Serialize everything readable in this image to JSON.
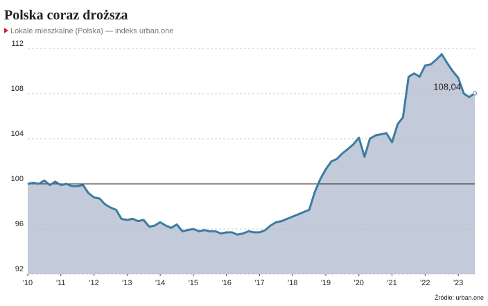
{
  "chart_data": {
    "type": "area",
    "title": "Polska coraz droższa",
    "subtitle": "Lokale mieszkalne (Polska) — indeks urban.one",
    "source": "Źródło: urban.one",
    "x": [
      2010,
      2010.17,
      2010.33,
      2010.5,
      2010.67,
      2010.83,
      2011,
      2011.17,
      2011.33,
      2011.5,
      2011.67,
      2011.83,
      2012,
      2012.17,
      2012.33,
      2012.5,
      2012.67,
      2012.83,
      2013,
      2013.17,
      2013.33,
      2013.5,
      2013.67,
      2013.83,
      2014,
      2014.17,
      2014.33,
      2014.5,
      2014.67,
      2014.83,
      2015,
      2015.17,
      2015.33,
      2015.5,
      2015.67,
      2015.83,
      2016,
      2016.17,
      2016.33,
      2016.5,
      2016.67,
      2016.83,
      2017,
      2017.17,
      2017.33,
      2017.5,
      2017.67,
      2017.83,
      2018,
      2018.17,
      2018.33,
      2018.5,
      2018.67,
      2018.83,
      2019,
      2019.17,
      2019.33,
      2019.5,
      2019.67,
      2019.83,
      2020,
      2020.17,
      2020.33,
      2020.5,
      2020.67,
      2020.83,
      2021,
      2021.17,
      2021.33,
      2021.5,
      2021.67,
      2021.83,
      2022,
      2022.17,
      2022.33,
      2022.5,
      2022.67,
      2022.83,
      2023,
      2023.17,
      2023.33,
      2023.5
    ],
    "series": [
      {
        "name": "Lokale mieszkalne (Polska)",
        "color": "#3b7ca3",
        "fill": "#c3cad9",
        "values": [
          100.0,
          100.1,
          100.0,
          100.3,
          99.9,
          100.2,
          99.9,
          100.0,
          99.8,
          99.8,
          99.9,
          99.2,
          98.8,
          98.7,
          98.2,
          97.9,
          97.7,
          96.9,
          96.8,
          96.9,
          96.7,
          96.8,
          96.2,
          96.3,
          96.6,
          96.3,
          96.1,
          96.4,
          95.8,
          95.9,
          96.0,
          95.8,
          95.9,
          95.8,
          95.8,
          95.6,
          95.7,
          95.7,
          95.5,
          95.6,
          95.8,
          95.7,
          95.7,
          95.9,
          96.3,
          96.6,
          96.7,
          96.9,
          97.1,
          97.3,
          97.5,
          97.7,
          99.3,
          100.4,
          101.3,
          102.0,
          102.2,
          102.7,
          103.1,
          103.5,
          104.1,
          102.4,
          104.0,
          104.3,
          104.4,
          104.5,
          103.7,
          105.3,
          105.9,
          109.5,
          109.8,
          109.5,
          110.5,
          110.6,
          111.0,
          111.5,
          110.7,
          110.0,
          109.4,
          108.0,
          107.7,
          108.04
        ],
        "value_labels": [
          null,
          null,
          null,
          null,
          null,
          null,
          null,
          null,
          null,
          null,
          null,
          null,
          null,
          null,
          null,
          null,
          null,
          null,
          null,
          null,
          null,
          null,
          null,
          null,
          null,
          null,
          null,
          null,
          null,
          null,
          null,
          null,
          null,
          null,
          null,
          null,
          null,
          null,
          null,
          null,
          null,
          null,
          null,
          null,
          null,
          null,
          null,
          null,
          null,
          null,
          null,
          null,
          null,
          null,
          null,
          null,
          null,
          null,
          null,
          null,
          null,
          null,
          null,
          null,
          null,
          null,
          null,
          null,
          null,
          null,
          null,
          null,
          null,
          null,
          null,
          null,
          null,
          null,
          null,
          null,
          null,
          "108,04"
        ]
      }
    ],
    "xlim": [
      2010,
      2023.5
    ],
    "xticks": [
      {
        "value": 2010,
        "label": "'10"
      },
      {
        "value": 2011,
        "label": "'11"
      },
      {
        "value": 2012,
        "label": "'12"
      },
      {
        "value": 2013,
        "label": "'13"
      },
      {
        "value": 2014,
        "label": "'14"
      },
      {
        "value": 2015,
        "label": "'15"
      },
      {
        "value": 2016,
        "label": "'16"
      },
      {
        "value": 2017,
        "label": "'17"
      },
      {
        "value": 2018,
        "label": "'18"
      },
      {
        "value": 2019,
        "label": "'19"
      },
      {
        "value": 2020,
        "label": "'20"
      },
      {
        "value": 2021,
        "label": "'21"
      },
      {
        "value": 2022,
        "label": "'22"
      },
      {
        "value": 2023,
        "label": "'23"
      }
    ],
    "ylim": [
      92,
      112
    ],
    "yticks": [
      92,
      96,
      100,
      104,
      108,
      112
    ],
    "reference_line": 100,
    "grid": true
  }
}
